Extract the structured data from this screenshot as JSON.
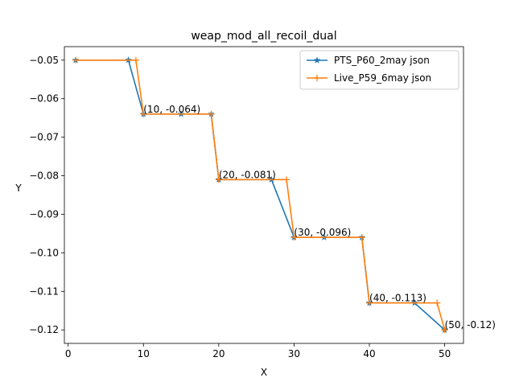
{
  "chart_data": {
    "type": "line",
    "title": "weap_mod_all_recoil_dual",
    "xlabel": "X",
    "ylabel": "Y",
    "xlim": [
      -0.5,
      52.5
    ],
    "ylim": [
      -0.1235,
      -0.0465
    ],
    "xticks": [
      0,
      10,
      20,
      30,
      40,
      50
    ],
    "yticks": [
      -0.05,
      -0.06,
      -0.07,
      -0.08,
      -0.09,
      -0.1,
      -0.11,
      -0.12
    ],
    "ytick_labels": [
      "−0.05",
      "−0.06",
      "−0.07",
      "−0.08",
      "−0.09",
      "−0.10",
      "−0.11",
      "−0.12"
    ],
    "xtick_labels": [
      "0",
      "10",
      "20",
      "30",
      "40",
      "50"
    ],
    "legend_position": "top-right",
    "series": [
      {
        "name": "PTS_P60_2may json",
        "color": "#1f77b4",
        "marker": "star",
        "x": [
          1,
          8,
          10,
          15,
          19,
          20,
          27,
          30,
          34,
          39,
          40,
          46,
          50
        ],
        "y": [
          -0.05,
          -0.05,
          -0.064,
          -0.064,
          -0.064,
          -0.081,
          -0.081,
          -0.096,
          -0.096,
          -0.096,
          -0.113,
          -0.113,
          -0.12
        ]
      },
      {
        "name": "Live_P59_6may json",
        "color": "#ff7f0e",
        "marker": "plus",
        "x": [
          1,
          9,
          10,
          19,
          20,
          29,
          30,
          39,
          40,
          49,
          50
        ],
        "y": [
          -0.05,
          -0.05,
          -0.064,
          -0.064,
          -0.081,
          -0.081,
          -0.096,
          -0.096,
          -0.113,
          -0.113,
          -0.12
        ]
      }
    ],
    "annotations": [
      {
        "x": 10,
        "y": -0.064,
        "text": "(10, -0.064)"
      },
      {
        "x": 20,
        "y": -0.081,
        "text": "(20, -0.081)"
      },
      {
        "x": 30,
        "y": -0.096,
        "text": "(30, -0.096)"
      },
      {
        "x": 40,
        "y": -0.113,
        "text": "(40, -0.113)"
      },
      {
        "x": 50,
        "y": -0.12,
        "text": "(50, -0.12)"
      }
    ]
  }
}
